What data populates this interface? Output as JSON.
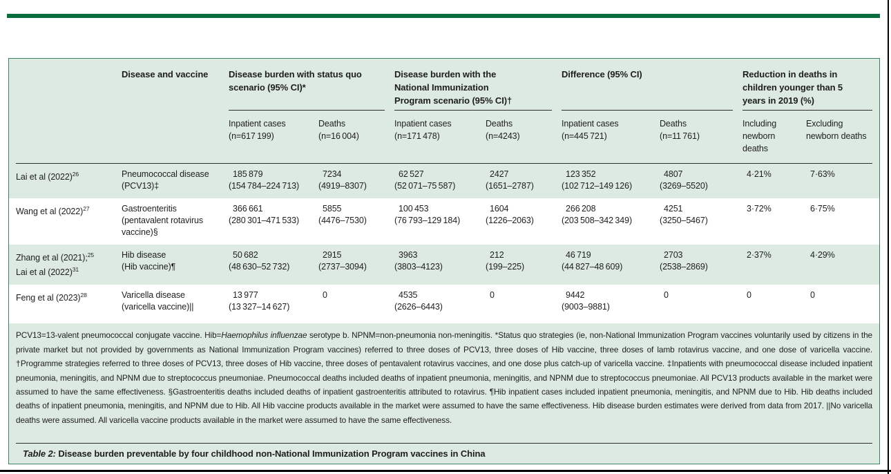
{
  "colors": {
    "accent_green": "#0a6c3c",
    "table_border": "#3e7f63",
    "table_bg": "#ddeae1"
  },
  "header": {
    "disease_col": "Disease and vaccine",
    "groups": [
      {
        "label": "Disease burden with status quo scenario (95% CI)*"
      },
      {
        "label": "Disease burden with the National Immunization Program scenario (95% CI)†"
      },
      {
        "label": "Difference (95% CI)"
      },
      {
        "label": "Reduction in deaths in children younger than 5 years in 2019 (%)"
      }
    ],
    "subheaders": [
      {
        "l1": "Inpatient cases",
        "l2": "(n=617 199)"
      },
      {
        "l1": "Deaths",
        "l2": "(n=16 004)"
      },
      {
        "l1": "Inpatient cases",
        "l2": "(n=171 478)"
      },
      {
        "l1": "Deaths",
        "l2": "(n=4243)"
      },
      {
        "l1": "Inpatient cases",
        "l2": "(n=445 721)"
      },
      {
        "l1": "Deaths",
        "l2": "(n=11 761)"
      },
      {
        "l1": "Including newborn deaths",
        "l2": ""
      },
      {
        "l1": "Excluding newborn deaths",
        "l2": ""
      }
    ]
  },
  "table": {
    "rows": [
      {
        "study": [
          {
            "t": "Lai et al (2022)",
            "s": "26"
          }
        ],
        "disease": [
          "Pneumococcal disease",
          "(PCV13)‡"
        ],
        "cells": [
          {
            "v": "185 879",
            "r": "(154 784–224 713)"
          },
          {
            "v": "7234",
            "r": "(4919–8307)"
          },
          {
            "v": "62 527",
            "r": "(52 071–75 587)"
          },
          {
            "v": "2427",
            "r": "(1651–2787)"
          },
          {
            "v": "123 352",
            "r": "(102 712–149 126)"
          },
          {
            "v": "4807",
            "r": "(3269–5520)"
          },
          {
            "v": "4·21%",
            "r": ""
          },
          {
            "v": "7·63%",
            "r": ""
          }
        ]
      },
      {
        "study": [
          {
            "t": "Wang et al (2022)",
            "s": "27"
          }
        ],
        "disease": [
          "Gastroenteritis",
          "(pentavalent rotavirus",
          "vaccine)§"
        ],
        "cells": [
          {
            "v": "366 661",
            "r": "(280 301–471 533)"
          },
          {
            "v": "5855",
            "r": "(4476–7530)"
          },
          {
            "v": "100 453",
            "r": "(76 793–129 184)"
          },
          {
            "v": "1604",
            "r": "(1226–2063)"
          },
          {
            "v": "266 208",
            "r": "(203 508–342 349)"
          },
          {
            "v": "4251",
            "r": "(3250–5467)"
          },
          {
            "v": "3·72%",
            "r": ""
          },
          {
            "v": "6·75%",
            "r": ""
          }
        ]
      },
      {
        "study": [
          {
            "t": "Zhang et al (2021);",
            "s": "25"
          },
          {
            "t": "Lai et al (2022)",
            "s": "31"
          }
        ],
        "disease": [
          "Hib disease",
          "(Hib vaccine)¶"
        ],
        "cells": [
          {
            "v": "50 682",
            "r": "(48 630–52 732)"
          },
          {
            "v": "2915",
            "r": "(2737–3094)"
          },
          {
            "v": "3963",
            "r": "(3803–4123)"
          },
          {
            "v": "212",
            "r": "(199–225)"
          },
          {
            "v": "46 719",
            "r": "(44 827–48 609)"
          },
          {
            "v": "2703",
            "r": "(2538–2869)"
          },
          {
            "v": "2·37%",
            "r": ""
          },
          {
            "v": "4·29%",
            "r": ""
          }
        ]
      },
      {
        "study": [
          {
            "t": "Feng et al (2023)",
            "s": "28"
          }
        ],
        "disease": [
          "Varicella disease",
          "(varicella vaccine)||"
        ],
        "cells": [
          {
            "v": "13 977",
            "r": "(13 327–14 627)"
          },
          {
            "v": "0",
            "r": ""
          },
          {
            "v": "4535",
            "r": "(2626–6443)"
          },
          {
            "v": "0",
            "r": ""
          },
          {
            "v": "9442",
            "r": "(9003–9881)"
          },
          {
            "v": "0",
            "r": ""
          },
          {
            "v": "0",
            "r": ""
          },
          {
            "v": "0",
            "r": ""
          }
        ]
      }
    ]
  },
  "footnote": {
    "seg_before_italic": "PCV13=13-valent pneumococcal conjugate vaccine. Hib=",
    "italic": "Haemophilus influenzae",
    "seg_after_italic": " serotype b. NPNM=non-pneumonia non-meningitis. *Status quo strategies (ie, non-National Immunization Program vaccines voluntarily used by citizens in the private market but not provided by governments as National Immunization Program vaccines) referred to three doses of PCV13, three doses of Hib vaccine, three doses of lamb rotavirus vaccine, and one dose of varicella vaccine. †Programme strategies referred to three doses of PCV13, three doses of Hib vaccine, three doses of pentavalent rotavirus vaccines, and one dose plus catch-up of varicella vaccine. ‡Inpatients with pneumococcal disease included inpatient pneumonia, meningitis, and NPNM due to streptococcus pneumoniae. Pneumococcal deaths included deaths of inpatient pneumonia, meningitis, and NPNM due to streptococcus pneumoniae. All PCV13 products available in the market were assumed to have the same effectiveness. §Gastroenteritis deaths included deaths of inpatient gastroenteritis attributed to rotavirus. ¶Hib inpatient cases included inpatient pneumonia, meningitis, and NPNM due to Hib. Hib deaths included deaths of inpatient pneumonia, meningitis, and NPNM due to Hib. All Hib vaccine products available in the market were assumed to have the same effectiveness. Hib disease burden estimates were derived from data from 2017. ||No varicella deaths were assumed. All varicella vaccine products available in the market were assumed to have the same effectiveness."
  },
  "caption": {
    "label": "Table 2:",
    "text": " Disease burden preventable by four childhood non-National Immunization Program vaccines in China"
  }
}
